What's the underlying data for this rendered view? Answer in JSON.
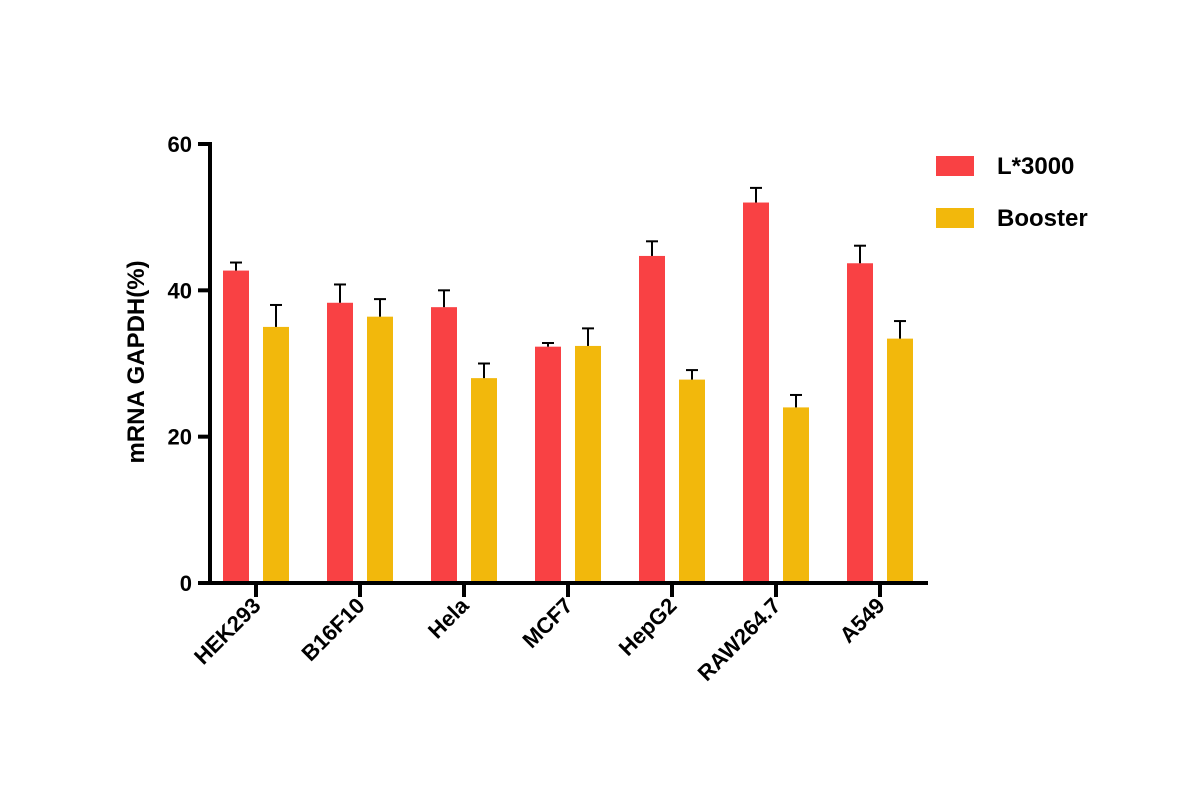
{
  "chart_data": {
    "type": "bar",
    "title": "",
    "xlabel": "",
    "ylabel": "mRNA GAPDH(%)",
    "ylim": [
      0,
      60
    ],
    "yticks": [
      0,
      20,
      40,
      60
    ],
    "grid": false,
    "legend_position": "top-right",
    "categories": [
      "HEK293",
      "B16F10",
      "Hela",
      "MCF7",
      "HepG2",
      "RAW264.7",
      "A549"
    ],
    "series": [
      {
        "name": "L*3000",
        "color": "#f94144",
        "values": [
          42.7,
          38.3,
          37.7,
          32.3,
          44.7,
          52.0,
          43.7
        ],
        "errors": [
          1.1,
          2.5,
          2.3,
          0.5,
          2.0,
          2.0,
          2.4
        ]
      },
      {
        "name": "Booster",
        "color": "#f2b80c",
        "values": [
          35.0,
          36.4,
          28.0,
          32.4,
          27.8,
          24.0,
          33.4
        ],
        "errors": [
          3.0,
          2.4,
          2.0,
          2.4,
          1.3,
          1.7,
          2.4
        ]
      }
    ]
  }
}
